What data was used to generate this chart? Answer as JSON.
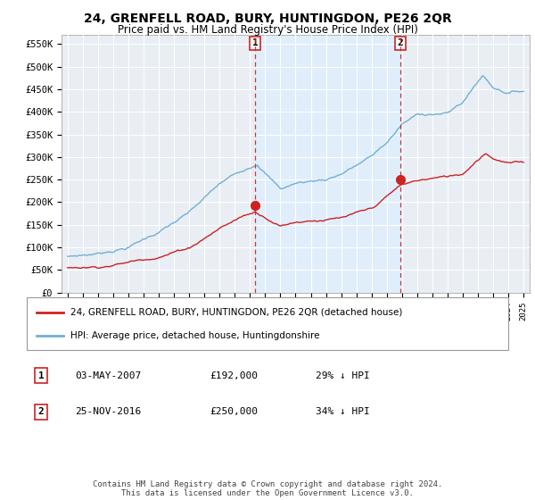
{
  "title": "24, GRENFELL ROAD, BURY, HUNTINGDON, PE26 2QR",
  "subtitle": "Price paid vs. HM Land Registry's House Price Index (HPI)",
  "ylabel_ticks": [
    "£0",
    "£50K",
    "£100K",
    "£150K",
    "£200K",
    "£250K",
    "£300K",
    "£350K",
    "£400K",
    "£450K",
    "£500K",
    "£550K"
  ],
  "ytick_values": [
    0,
    50000,
    100000,
    150000,
    200000,
    250000,
    300000,
    350000,
    400000,
    450000,
    500000,
    550000
  ],
  "ylim": [
    0,
    570000
  ],
  "hpi_color": "#74afd4",
  "price_color": "#cc2222",
  "marker_color": "#cc2222",
  "fill_color": "#ddeeff",
  "bg_color": "#e8eef4",
  "grid_color": "#ffffff",
  "legend_line1": "24, GRENFELL ROAD, BURY, HUNTINGDON, PE26 2QR (detached house)",
  "legend_line2": "HPI: Average price, detached house, Huntingdonshire",
  "marker1_label": "1",
  "marker1_date": "03-MAY-2007",
  "marker1_price": "£192,000",
  "marker1_hpi": "29% ↓ HPI",
  "marker1_year": 2007.33,
  "marker1_value": 192000,
  "marker2_label": "2",
  "marker2_date": "25-NOV-2016",
  "marker2_price": "£250,000",
  "marker2_hpi": "34% ↓ HPI",
  "marker2_year": 2016.9,
  "marker2_value": 250000,
  "footer": "Contains HM Land Registry data © Crown copyright and database right 2024.\nThis data is licensed under the Open Government Licence v3.0."
}
